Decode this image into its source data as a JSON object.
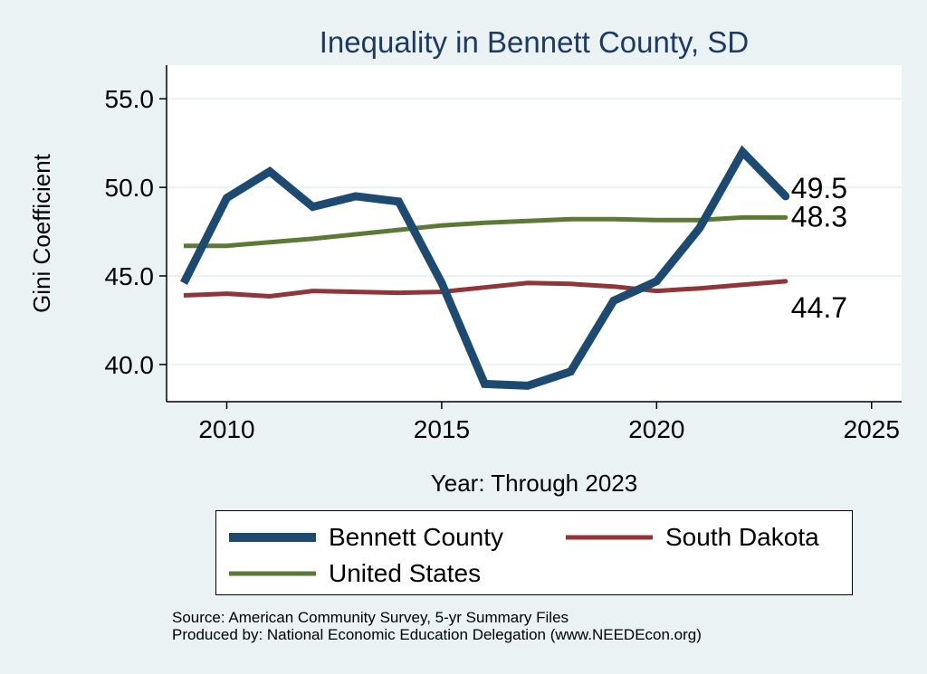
{
  "chart_data": {
    "type": "line",
    "title": "Inequality in Bennett County, SD",
    "xlabel": "Year: Through 2023",
    "ylabel": "Gini Coefficient",
    "xlim": [
      2008.6,
      2025.7
    ],
    "ylim": [
      37.9,
      56.9
    ],
    "xticks": [
      2010,
      2015,
      2020,
      2025
    ],
    "yticks": [
      40.0,
      45.0,
      50.0,
      55.0
    ],
    "ytick_labels": [
      "40.0",
      "45.0",
      "50.0",
      "55.0"
    ],
    "grid": true,
    "legend_position": "bottom",
    "x": [
      2009,
      2010,
      2011,
      2012,
      2013,
      2014,
      2015,
      2016,
      2017,
      2018,
      2019,
      2020,
      2021,
      2022,
      2023
    ],
    "series": [
      {
        "name": "Bennett County",
        "color": "#1c4a71",
        "values": [
          44.6,
          49.4,
          50.9,
          48.9,
          49.5,
          49.2,
          44.6,
          38.9,
          38.8,
          39.6,
          43.6,
          44.7,
          47.7,
          52.0,
          49.5
        ],
        "end_label": "49.5"
      },
      {
        "name": "South Dakota",
        "color": "#903539",
        "values": [
          43.9,
          44.0,
          43.85,
          44.15,
          44.1,
          44.05,
          44.1,
          44.35,
          44.6,
          44.55,
          44.4,
          44.15,
          44.3,
          44.5,
          44.7
        ],
        "end_label": "44.7"
      },
      {
        "name": "United States",
        "color": "#5b7a36",
        "values": [
          46.7,
          46.7,
          46.9,
          47.1,
          47.35,
          47.6,
          47.85,
          48.0,
          48.1,
          48.2,
          48.2,
          48.15,
          48.15,
          48.3,
          48.3
        ],
        "end_label": "48.3"
      }
    ]
  },
  "footer": {
    "source": "Source: American Community Survey, 5-yr Summary Files",
    "produced_by": "Produced by: National Economic Education Delegation (www.NEEDEcon.org)"
  }
}
